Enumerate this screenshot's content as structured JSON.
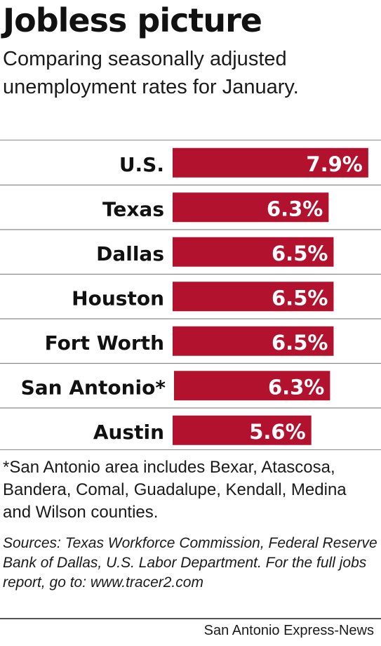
{
  "title": "Jobless picture",
  "subtitle": "Comparing seasonally adjusted unemployment rates for January.",
  "footnote": "*San Antonio area includes Bexar, Atascosa, Bandera, Comal, Guadalupe, Kendall, Medina and Wilson counties.",
  "sources": "Sources: Texas Workforce Commission, Federal Reserve Bank of Dallas, U.S. Labor Department. For the full jobs report, go to: www.tracer2.com",
  "credit": "San Antonio Express-News",
  "colors": {
    "bar": "#b3122e",
    "bar_label": "#ffffff",
    "category_label": "#111111",
    "rule": "#8a8a8a"
  },
  "chart_data": {
    "type": "bar",
    "orientation": "horizontal",
    "categories": [
      "U.S.",
      "Texas",
      "Dallas",
      "Houston",
      "Fort Worth",
      "San Antonio*",
      "Austin"
    ],
    "values": [
      7.9,
      6.3,
      6.5,
      6.5,
      6.5,
      6.3,
      5.6
    ],
    "value_labels": [
      "7.9%",
      "6.3%",
      "6.5%",
      "6.5%",
      "6.5%",
      "6.3%",
      "5.6%"
    ],
    "unit": "%",
    "title": "",
    "xlabel": "",
    "ylabel": "",
    "grid": false,
    "legend": "none"
  }
}
